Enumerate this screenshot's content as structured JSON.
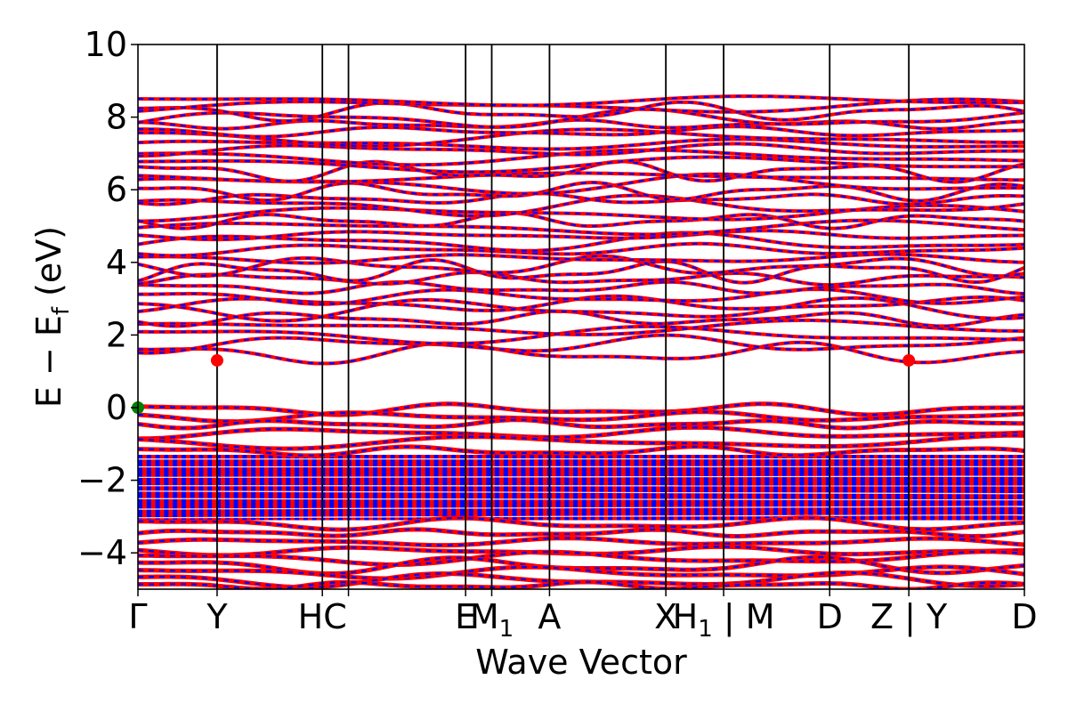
{
  "chart_data": {
    "type": "line",
    "xlabel": "Wave Vector",
    "ylabel": "E − E",
    "ylabel_sub": "f",
    "ylabel_unit": " (eV)",
    "ylim": [
      -5,
      10
    ],
    "y_ticks": [
      -4,
      -2,
      0,
      2,
      4,
      6,
      8,
      10
    ],
    "y_tick_labels": [
      "−4",
      "−2",
      "0",
      "2",
      "4",
      "6",
      "8",
      "10"
    ],
    "x_range": [
      0,
      11.2
    ],
    "kpoints": [
      {
        "label": "Γ",
        "pos": 0.0
      },
      {
        "label": "Y",
        "pos": 1.0
      },
      {
        "label": "HC",
        "pos": 2.33
      },
      {
        "label": "",
        "pos": 2.66
      },
      {
        "label": "E",
        "pos": 4.14
      },
      {
        "label": "M",
        "sub": "1",
        "pos": 4.47
      },
      {
        "label": "A",
        "pos": 5.2
      },
      {
        "label": "X",
        "pos": 6.67
      },
      {
        "label": "H",
        "sub": "1",
        "suffix": " | M",
        "pos": 7.4
      },
      {
        "label": "D",
        "pos": 8.74
      },
      {
        "label": "Z | Y",
        "pos": 9.74
      },
      {
        "label": "D",
        "pos": 11.2
      }
    ],
    "series_colors": {
      "spin_up": "#ff0000",
      "spin_down": "#0000ff"
    },
    "band_extremes": {
      "cbm": {
        "x": 1.0,
        "y": 1.3,
        "color": "#ff0000"
      },
      "cbm2": {
        "x": 9.74,
        "y": 1.3,
        "color": "#ff0000"
      },
      "vbm": {
        "x": 0.0,
        "y": 0.0,
        "color": "#008000"
      }
    },
    "conduction_levels": [
      1.5,
      1.75,
      2.0,
      2.2,
      2.45,
      2.7,
      2.85,
      3.05,
      3.3,
      3.55,
      3.75,
      3.9,
      4.1,
      4.35,
      4.55,
      4.75,
      4.95,
      5.15,
      5.35,
      5.55,
      5.75,
      5.95,
      6.15,
      6.35,
      6.5,
      6.7,
      6.9,
      7.1,
      7.25,
      7.45,
      7.6,
      7.8,
      7.95,
      8.15,
      8.3,
      8.45
    ],
    "valence_top_levels": [
      -0.05,
      -0.25,
      -0.45,
      -0.7,
      -0.95,
      -1.2
    ],
    "valence_bottom_levels": [
      -3.2,
      -3.45,
      -3.7,
      -3.95,
      -4.15,
      -4.35,
      -4.55,
      -4.75,
      -4.9
    ]
  }
}
